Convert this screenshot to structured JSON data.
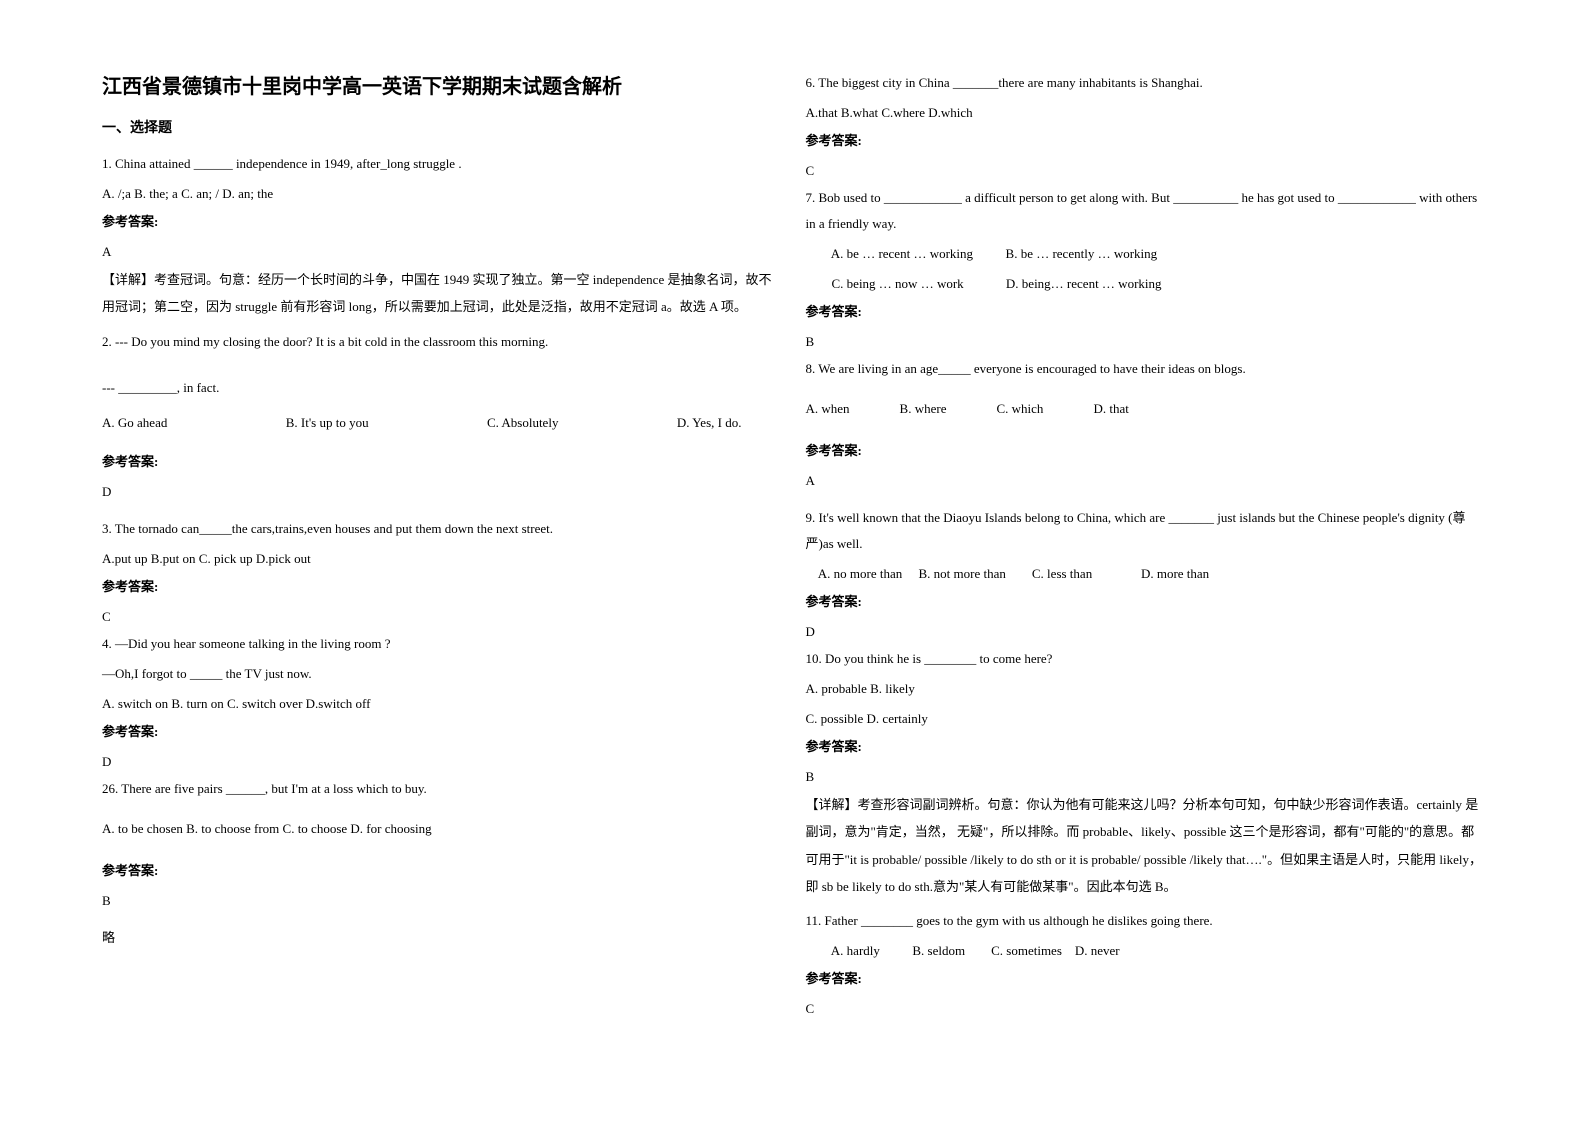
{
  "title": "江西省景德镇市十里岗中学高一英语下学期期末试题含解析",
  "section1": "一、选择题",
  "q1": {
    "text": "1. China attained ______ independence in 1949, after_long struggle .",
    "options": "A. /;a    B. the; a         C. an; / D. an; the",
    "answerLabel": "参考答案:",
    "answer": "A",
    "explanation": "【详解】考查冠词。句意：经历一个长时间的斗争，中国在 1949 实现了独立。第一空 independence 是抽象名词，故不用冠词；第二空，因为 struggle 前有形容词 long，所以需要加上冠词，此处是泛指，故用不定冠词 a。故选 A 项。"
  },
  "q2": {
    "text": "2. --- Do you mind my closing the door? It is a bit cold in the classroom this morning.",
    "text2": "--- _________, in fact.",
    "optA": "A. Go ahead",
    "optB": "B. It's up to you",
    "optC": "C. Absolutely",
    "optD": "D. Yes, I do.",
    "answerLabel": "参考答案:",
    "answer": "D"
  },
  "q3": {
    "text": "3. The tornado can_____the cars,trains,even houses and put them down the next street.",
    "options": "A.put up  B.put  on    C. pick up    D.pick out",
    "answerLabel": "参考答案:",
    "answer": "C"
  },
  "q4": {
    "text": "4. —Did you hear someone talking in the living room ?",
    "text2": "   —Oh,I forgot to _____ the TV just now.",
    "options": "   A. switch on  B. turn on      C. switch over     D.switch off",
    "answerLabel": "参考答案:",
    "answer": "D"
  },
  "q5": {
    "text": "26. There are five pairs ______, but I'm at a loss which to buy.",
    "options": "    A. to be chosen      B. to choose from    C. to choose    D. for choosing",
    "answerLabel": "参考答案:",
    "answer": "B",
    "note": "略"
  },
  "q6": {
    "text": "6. The biggest city in China _______there are many inhabitants is Shanghai.",
    "options": "A.that   B.what   C.where   D.which",
    "answerLabel": "参考答案:",
    "answer": "C"
  },
  "q7": {
    "text": "7. Bob used to ____________ a difficult person to get along with. But __________ he has got used to ____________ with others in a friendly way.",
    "optLine1": "        A. be … recent … working          B. be … recently … working",
    "optLine2": "        C. being … now … work             D. being… recent … working",
    "answerLabel": "参考答案:",
    "answer": "B"
  },
  "q8": {
    "text": "8. We are living in an age_____ everyone is encouraged to have their ideas on blogs.",
    "optA": "A. when",
    "optB": "B. where",
    "optC": "C. which",
    "optD": "D. that",
    "answerLabel": "参考答案:",
    "answer": "A"
  },
  "q9": {
    "text": "9. It's well known that the Diaoyu Islands belong to China, which are _______ just islands but the Chinese people's dignity (尊严)as well.",
    "options": "    A. no more than     B. not more than        C. less than               D. more than",
    "answerLabel": "参考答案:",
    "answer": "D"
  },
  "q10": {
    "text": "10. Do you think he is ________ to come here?",
    "optLine1": "A. probable    B. likely",
    "optLine2": "C. possible    D. certainly",
    "answerLabel": "参考答案:",
    "answer": "B",
    "explanation": "【详解】考查形容词副词辨析。句意：你认为他有可能来这儿吗？分析本句可知，句中缺少形容词作表语。certainly 是副词，意为\"肯定，当然，  无疑\"，所以排除。而 probable、likely、possible 这三个是形容词，都有\"可能的\"的意思。都可用于\"it is probable/ possible /likely to do sth or it is probable/ possible /likely that….\"。但如果主语是人时，只能用 likely，即 sb be likely to do sth.意为\"某人有可能做某事\"。因此本句选 B。"
  },
  "q11": {
    "text": "11. Father ________ goes to the gym with us although he dislikes going there.",
    "options": "        A. hardly          B. seldom        C. sometimes    D. never",
    "answerLabel": "参考答案:",
    "answer": "C"
  }
}
